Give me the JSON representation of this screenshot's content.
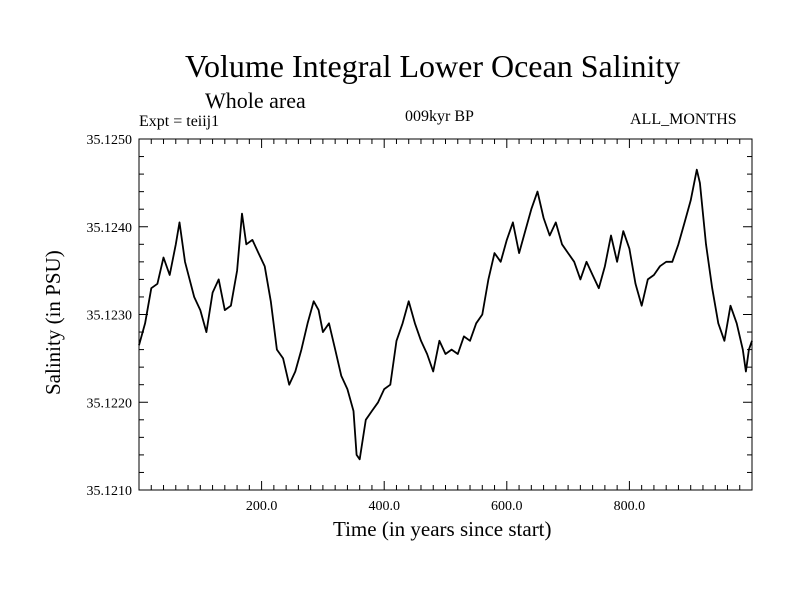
{
  "chart_data": {
    "type": "line",
    "title": "Volume Integral Lower Ocean Salinity",
    "subtitle": "Whole area",
    "left_label": "Expt = teiij1",
    "center_label": "009kyr BP",
    "right_label": "ALL_MONTHS",
    "xlabel": "Time (in years since start)",
    "ylabel": "Salinity (in PSU)",
    "xlim": [
      0,
      1000
    ],
    "ylim": [
      35.121,
      35.125
    ],
    "x_ticks": [
      200,
      400,
      600,
      800
    ],
    "x_tick_labels": [
      "200.0",
      "400.0",
      "600.0",
      "800.0"
    ],
    "y_ticks": [
      35.121,
      35.122,
      35.123,
      35.124,
      35.125
    ],
    "y_tick_labels": [
      "35.1210",
      "35.1220",
      "35.1230",
      "35.1240",
      "35.1250"
    ],
    "series": [
      {
        "x": [
          0,
          10,
          20,
          30,
          40,
          50,
          60,
          66,
          75,
          90,
          100,
          110,
          120,
          130,
          140,
          150,
          160,
          168,
          175,
          185,
          195,
          205,
          215,
          225,
          235,
          245,
          255,
          265,
          275,
          285,
          293,
          300,
          310,
          320,
          330,
          340,
          350,
          355,
          360,
          370,
          380,
          390,
          400,
          410,
          420,
          430,
          440,
          450,
          460,
          470,
          480,
          490,
          500,
          510,
          520,
          530,
          540,
          550,
          560,
          570,
          580,
          590,
          600,
          610,
          620,
          630,
          640,
          650,
          660,
          670,
          680,
          690,
          700,
          710,
          720,
          730,
          740,
          750,
          760,
          770,
          780,
          790,
          800,
          810,
          820,
          830,
          840,
          850,
          860,
          870,
          880,
          890,
          900,
          910,
          915,
          925,
          935,
          945,
          955,
          965,
          975,
          985,
          990,
          995,
          1000
        ],
        "y": [
          35.12265,
          35.1229,
          35.1233,
          35.12335,
          35.12365,
          35.12345,
          35.1238,
          35.12405,
          35.1236,
          35.1232,
          35.12305,
          35.1228,
          35.12325,
          35.1234,
          35.12305,
          35.1231,
          35.1235,
          35.12415,
          35.1238,
          35.12385,
          35.1237,
          35.12355,
          35.12315,
          35.1226,
          35.1225,
          35.1222,
          35.12235,
          35.1226,
          35.1229,
          35.12315,
          35.12305,
          35.1228,
          35.1229,
          35.1226,
          35.1223,
          35.12215,
          35.1219,
          35.1214,
          35.12135,
          35.1218,
          35.1219,
          35.122,
          35.12215,
          35.1222,
          35.1227,
          35.1229,
          35.12315,
          35.1229,
          35.1227,
          35.12255,
          35.12235,
          35.1227,
          35.12255,
          35.1226,
          35.12255,
          35.12275,
          35.1227,
          35.1229,
          35.123,
          35.1234,
          35.1237,
          35.1236,
          35.12385,
          35.12405,
          35.1237,
          35.12395,
          35.1242,
          35.1244,
          35.1241,
          35.1239,
          35.12405,
          35.1238,
          35.1237,
          35.1236,
          35.1234,
          35.1236,
          35.12345,
          35.1233,
          35.12355,
          35.1239,
          35.1236,
          35.12395,
          35.12375,
          35.12335,
          35.1231,
          35.1234,
          35.12345,
          35.12355,
          35.1236,
          35.1236,
          35.1238,
          35.12405,
          35.1243,
          35.12465,
          35.1245,
          35.1238,
          35.1233,
          35.1229,
          35.1227,
          35.1231,
          35.1229,
          35.1226,
          35.12235,
          35.1226,
          35.1227
        ]
      }
    ],
    "grid": false,
    "line_color": "#000000"
  }
}
